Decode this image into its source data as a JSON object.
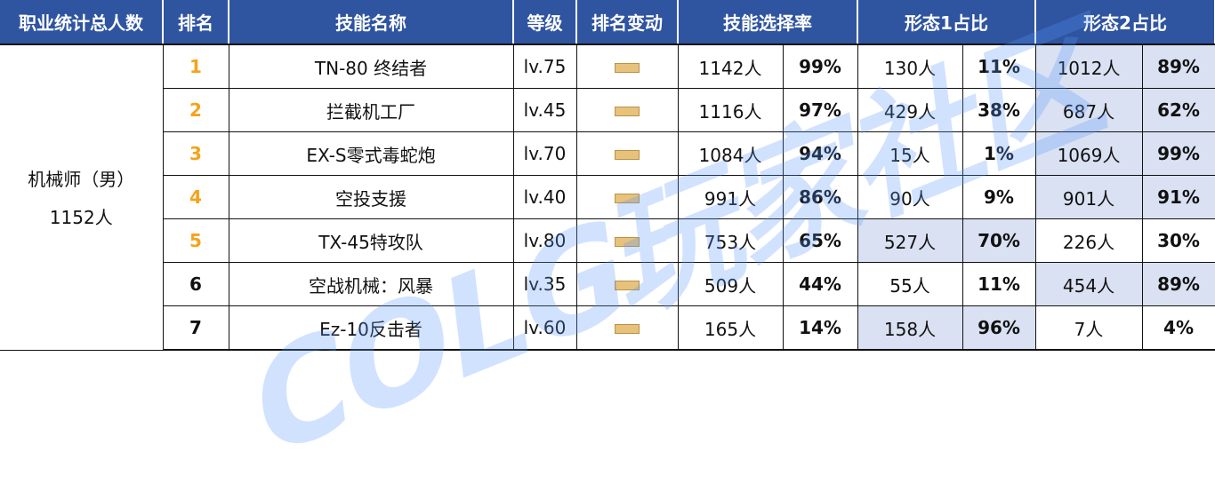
{
  "headers": [
    "职业统计总人数",
    "排名",
    "技能名称",
    "等级",
    "排名变动",
    "技能选择率",
    "形态1占比",
    "形态2占比"
  ],
  "profession": {
    "name": "机械师（男）",
    "total": "1152人"
  },
  "colors": {
    "header_bg": "#2f54a0",
    "highlight": "#d9e1f2",
    "top_rank": "#f5a31a",
    "rank_change": "#e8c27a"
  },
  "rank_change_icon": "flat-bar-icon",
  "rows": [
    {
      "rank": "1",
      "skill": "TN-80 终结者",
      "level": "lv.75",
      "sel_n": "1142人",
      "sel_p": "99%",
      "f1_n": "130人",
      "f1_p": "11%",
      "f2_n": "1012人",
      "f2_p": "89%",
      "hl": 2,
      "top": true
    },
    {
      "rank": "2",
      "skill": "拦截机工厂",
      "level": "lv.45",
      "sel_n": "1116人",
      "sel_p": "97%",
      "f1_n": "429人",
      "f1_p": "38%",
      "f2_n": "687人",
      "f2_p": "62%",
      "hl": 2,
      "top": true
    },
    {
      "rank": "3",
      "skill": "EX-S零式毒蛇炮",
      "level": "lv.70",
      "sel_n": "1084人",
      "sel_p": "94%",
      "f1_n": "15人",
      "f1_p": "1%",
      "f2_n": "1069人",
      "f2_p": "99%",
      "hl": 2,
      "top": true
    },
    {
      "rank": "4",
      "skill": "空投支援",
      "level": "lv.40",
      "sel_n": "991人",
      "sel_p": "86%",
      "f1_n": "90人",
      "f1_p": "9%",
      "f2_n": "901人",
      "f2_p": "91%",
      "hl": 2,
      "top": true
    },
    {
      "rank": "5",
      "skill": "TX-45特攻队",
      "level": "lv.80",
      "sel_n": "753人",
      "sel_p": "65%",
      "f1_n": "527人",
      "f1_p": "70%",
      "f2_n": "226人",
      "f2_p": "30%",
      "hl": 1,
      "top": true
    },
    {
      "rank": "6",
      "skill": "空战机械：风暴",
      "level": "lv.35",
      "sel_n": "509人",
      "sel_p": "44%",
      "f1_n": "55人",
      "f1_p": "11%",
      "f2_n": "454人",
      "f2_p": "89%",
      "hl": 2,
      "top": false
    },
    {
      "rank": "7",
      "skill": "Ez-10反击者",
      "level": "lv.60",
      "sel_n": "165人",
      "sel_p": "14%",
      "f1_n": "158人",
      "f1_p": "96%",
      "f2_n": "7人",
      "f2_p": "4%",
      "hl": 1,
      "top": false
    }
  ],
  "watermark": "COLG玩家社区"
}
